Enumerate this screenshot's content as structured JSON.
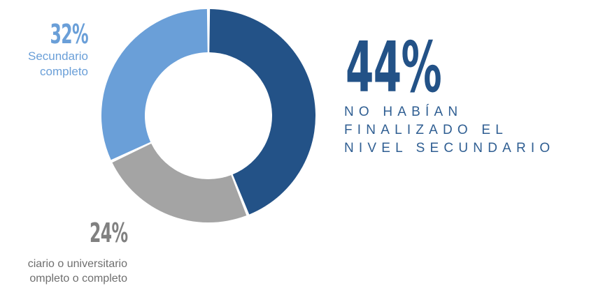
{
  "chart_data": {
    "type": "pie",
    "donut": true,
    "slices": [
      {
        "value": 44,
        "label": "44%",
        "color": "#235287",
        "description": [
          "NO HABÍAN",
          "FINALIZADO EL",
          "NIVEL SECUNDARIO"
        ]
      },
      {
        "value": 24,
        "label": "24%",
        "color": "#a4a4a4",
        "description": [
          "ciario o universitario",
          "ompleto o completo"
        ]
      },
      {
        "value": 32,
        "label": "32%",
        "color": "#6a9fd8",
        "description": [
          "Secundario",
          "completo"
        ]
      }
    ]
  }
}
